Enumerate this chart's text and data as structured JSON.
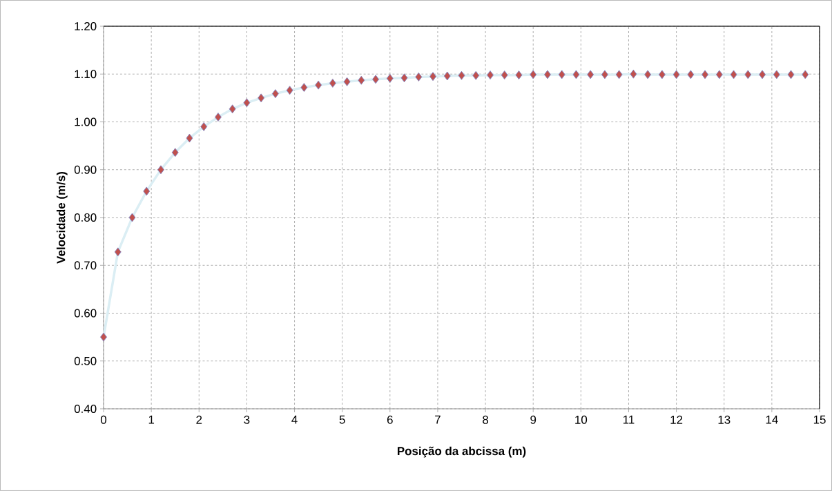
{
  "chart_data": {
    "type": "line",
    "xlabel": "Posição da abcissa (m)",
    "ylabel": "Velocidade (m/s)",
    "x": [
      0,
      0.3,
      0.6,
      0.9,
      1.2,
      1.5,
      1.8,
      2.1,
      2.4,
      2.7,
      3.0,
      3.3,
      3.6,
      3.9,
      4.2,
      4.5,
      4.8,
      5.1,
      5.4,
      5.7,
      6.0,
      6.3,
      6.6,
      6.9,
      7.2,
      7.5,
      7.8,
      8.1,
      8.4,
      8.7,
      9.0,
      9.3,
      9.6,
      9.9,
      10.2,
      10.5,
      10.8,
      11.1,
      11.4,
      11.7,
      12.0,
      12.3,
      12.6,
      12.9,
      13.2,
      13.5,
      13.8,
      14.1,
      14.4,
      14.7
    ],
    "series": [
      {
        "color": "#c0504d",
        "values": [
          0.55,
          0.728,
          0.8,
          0.855,
          0.9,
          0.936,
          0.966,
          0.99,
          1.01,
          1.027,
          1.04,
          1.05,
          1.059,
          1.066,
          1.072,
          1.077,
          1.081,
          1.084,
          1.087,
          1.089,
          1.091,
          1.092,
          1.094,
          1.095,
          1.096,
          1.097,
          1.097,
          1.098,
          1.098,
          1.098,
          1.099,
          1.099,
          1.099,
          1.099,
          1.099,
          1.099,
          1.099,
          1.1,
          1.099,
          1.099,
          1.099,
          1.099,
          1.099,
          1.099,
          1.099,
          1.099,
          1.099,
          1.099,
          1.099,
          1.099
        ]
      }
    ],
    "xlim": [
      0,
      15
    ],
    "ylim": [
      0.4,
      1.2
    ],
    "xticks": [
      0,
      1,
      2,
      3,
      4,
      5,
      6,
      7,
      8,
      9,
      10,
      11,
      12,
      13,
      14,
      15
    ],
    "yticks": [
      {
        "value": 0.4,
        "label": "0.40"
      },
      {
        "value": 0.5,
        "label": "0.50"
      },
      {
        "value": 0.6,
        "label": "0.60"
      },
      {
        "value": 0.7,
        "label": "0.70"
      },
      {
        "value": 0.8,
        "label": "0.80"
      },
      {
        "value": 0.9,
        "label": "0.90"
      },
      {
        "value": 1.0,
        "label": "1.00"
      },
      {
        "value": 1.1,
        "label": "1.10"
      },
      {
        "value": 1.2,
        "label": "1.20"
      }
    ],
    "grid": true,
    "marker": "diamond",
    "line_style": "solid"
  }
}
